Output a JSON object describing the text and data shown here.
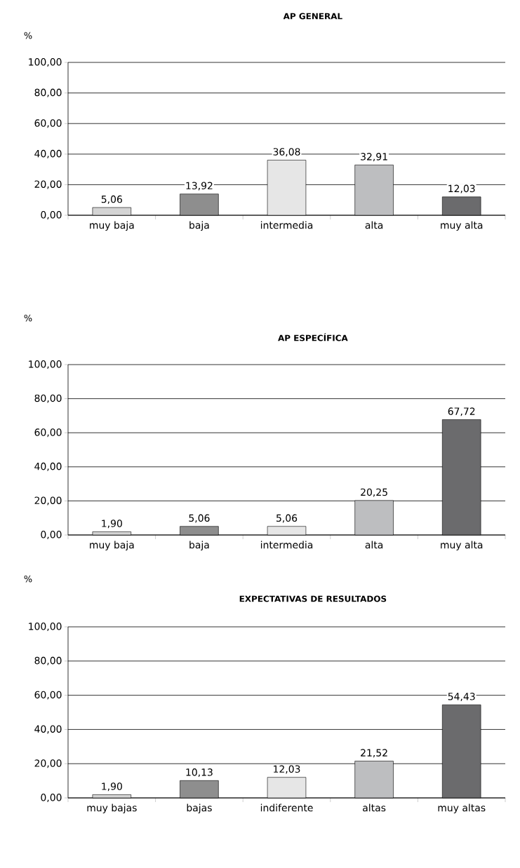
{
  "chart_data": [
    {
      "type": "bar",
      "title": "AP GENERAL",
      "ylabel": "%",
      "categories": [
        "muy baja",
        "baja",
        "intermedia",
        "alta",
        "muy alta"
      ],
      "values": [
        5.06,
        13.92,
        36.08,
        32.91,
        12.03
      ],
      "value_labels": [
        "5,06",
        "13,92",
        "36,08",
        "32,91",
        "12,03"
      ],
      "colors": [
        "#d4d4d4",
        "#8e8e8e",
        "#e6e6e6",
        "#bdbec0",
        "#6b6b6d"
      ],
      "ylim": [
        0,
        100
      ],
      "yticks": [
        {
          "value": 0,
          "label": "0,00"
        },
        {
          "value": 20,
          "label": "20,00"
        },
        {
          "value": 40,
          "label": "40,00"
        },
        {
          "value": 60,
          "label": "60,00"
        },
        {
          "value": 80,
          "label": "80,00"
        },
        {
          "value": 100,
          "label": "100,00"
        }
      ],
      "grid": "y"
    },
    {
      "type": "bar",
      "title": "AP ESPECÍFICA",
      "ylabel": "%",
      "categories": [
        "muy baja",
        "baja",
        "intermedia",
        "alta",
        "muy alta"
      ],
      "values": [
        1.9,
        5.06,
        5.06,
        20.25,
        67.72
      ],
      "value_labels": [
        "1,90",
        "5,06",
        "5,06",
        "20,25",
        "67,72"
      ],
      "colors": [
        "#d4d4d4",
        "#8e8e8e",
        "#e6e6e6",
        "#bdbec0",
        "#6b6b6d"
      ],
      "ylim": [
        0,
        100
      ],
      "yticks": [
        {
          "value": 0,
          "label": "0,00"
        },
        {
          "value": 20,
          "label": "20,00"
        },
        {
          "value": 40,
          "label": "40,00"
        },
        {
          "value": 60,
          "label": "60,00"
        },
        {
          "value": 80,
          "label": "80,00"
        },
        {
          "value": 100,
          "label": "100,00"
        }
      ],
      "grid": "y"
    },
    {
      "type": "bar",
      "title": "EXPECTATIVAS DE RESULTADOS",
      "ylabel": "%",
      "categories": [
        "muy bajas",
        "bajas",
        "indiferente",
        "altas",
        "muy altas"
      ],
      "values": [
        1.9,
        10.13,
        12.03,
        21.52,
        54.43
      ],
      "value_labels": [
        "1,90",
        "10,13",
        "12,03",
        "21,52",
        "54,43"
      ],
      "colors": [
        "#d4d4d4",
        "#8e8e8e",
        "#e6e6e6",
        "#bdbec0",
        "#6b6b6d"
      ],
      "ylim": [
        0,
        100
      ],
      "yticks": [
        {
          "value": 0,
          "label": "0,00"
        },
        {
          "value": 20,
          "label": "20,00"
        },
        {
          "value": 40,
          "label": "40,00"
        },
        {
          "value": 60,
          "label": "60,00"
        },
        {
          "value": 80,
          "label": "80,00"
        },
        {
          "value": 100,
          "label": "100,00"
        }
      ],
      "grid": "y"
    }
  ]
}
